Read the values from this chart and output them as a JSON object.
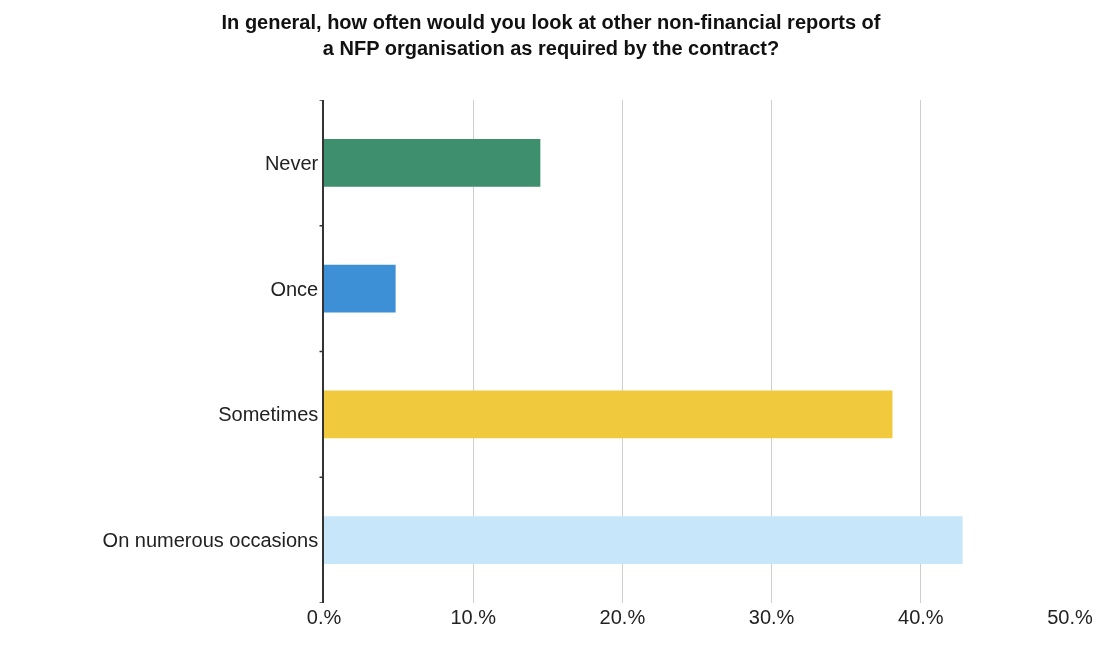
{
  "chart_data": {
    "type": "bar",
    "orientation": "horizontal",
    "title": "In general, how often would you look at other non-financial reports of\na NFP organisation as required by the contract?",
    "categories": [
      "Never",
      "Once",
      "Sometimes",
      "On numerous occasions"
    ],
    "values": [
      14.5,
      4.8,
      38.1,
      42.8
    ],
    "colors": [
      "#3e8f6e",
      "#3d8fd6",
      "#f0c93c",
      "#c7e6f9"
    ],
    "xlim": [
      0,
      50
    ],
    "xticks": [
      {
        "value": 0,
        "label": "0.%"
      },
      {
        "value": 10,
        "label": "10.%"
      },
      {
        "value": 20,
        "label": "20.%"
      },
      {
        "value": 30,
        "label": "30.%"
      },
      {
        "value": 40,
        "label": "40.%"
      },
      {
        "value": 50,
        "label": "50.%"
      }
    ],
    "grid": "x",
    "legend": false
  }
}
